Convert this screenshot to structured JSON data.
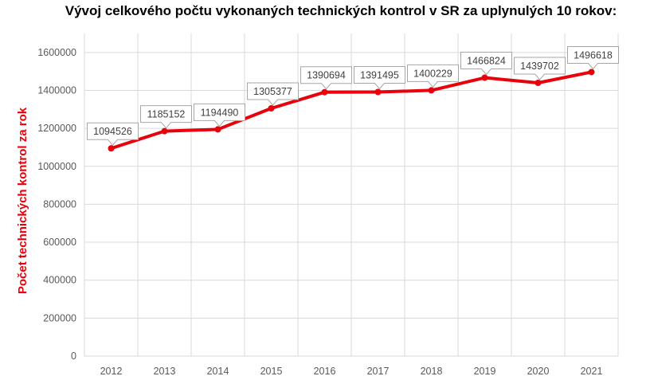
{
  "chart_data": {
    "type": "line",
    "title": "Vývoj celkového počtu vykonaných technických kontrol v SR za uplynulých 10 rokov:",
    "ylabel": "Počet technických kontrol za rok",
    "xlabel": "",
    "categories": [
      "2012",
      "2013",
      "2014",
      "2015",
      "2016",
      "2017",
      "2018",
      "2019",
      "2020",
      "2021"
    ],
    "series": [
      {
        "values": [
          1094526,
          1185152,
          1194490,
          1305377,
          1390694,
          1391495,
          1400229,
          1466824,
          1439702,
          1496618
        ]
      }
    ],
    "ylim": [
      0,
      1700000
    ],
    "yticks": [
      "0",
      "200000",
      "400000",
      "600000",
      "800000",
      "1000000",
      "1200000",
      "1400000",
      "1600000"
    ],
    "grid": true,
    "legend": "none",
    "line_color": "#e8000b",
    "grid_color": "#d9d9d9",
    "data_labels": [
      "1094526",
      "1185152",
      "1194490",
      "1305377",
      "1390694",
      "1391495",
      "1400229",
      "1466824",
      "1439702",
      "1496618"
    ]
  }
}
